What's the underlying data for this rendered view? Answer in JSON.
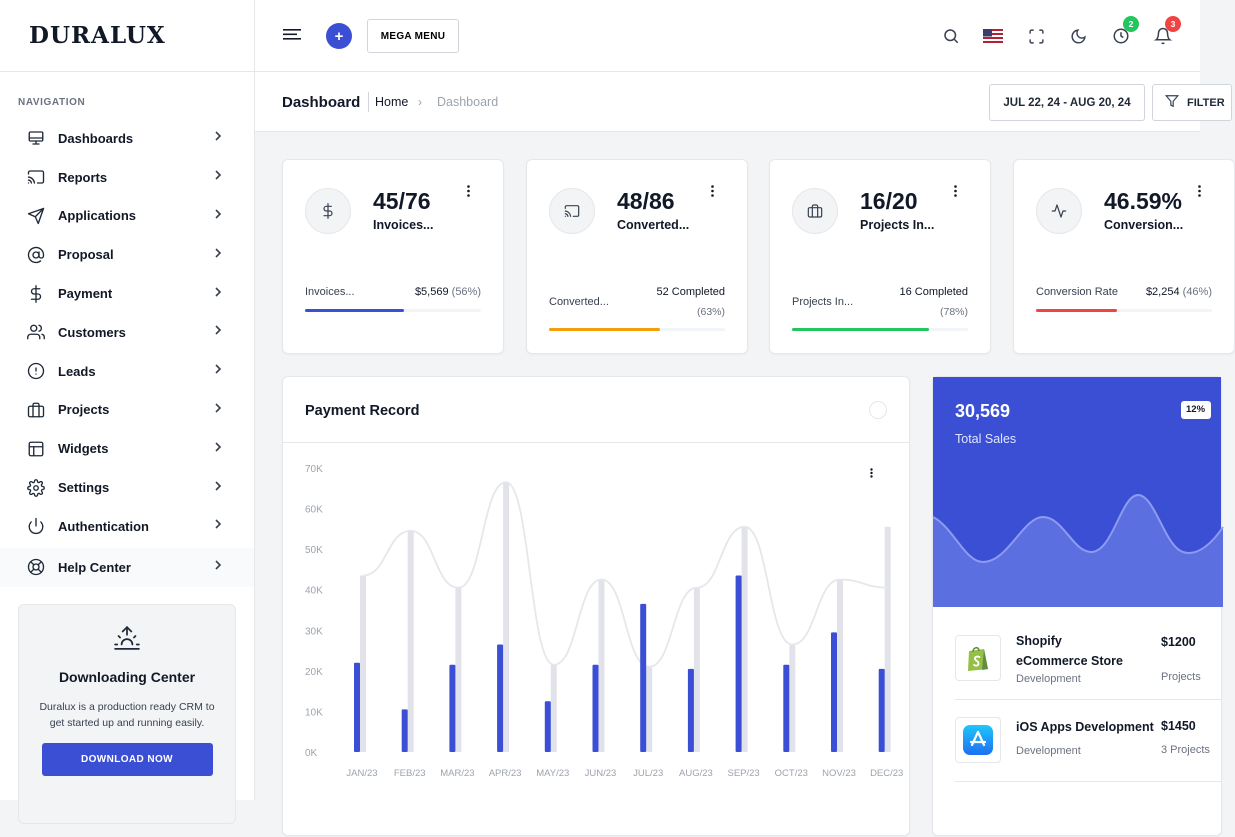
{
  "brand": {
    "logo": "DURALUX"
  },
  "sidebar": {
    "caption": "NAVIGATION",
    "items": [
      {
        "label": "Dashboards",
        "icon": "monitor-icon"
      },
      {
        "label": "Reports",
        "icon": "cast-icon"
      },
      {
        "label": "Applications",
        "icon": "send-icon"
      },
      {
        "label": "Proposal",
        "icon": "at-sign-icon"
      },
      {
        "label": "Payment",
        "icon": "dollar-icon"
      },
      {
        "label": "Customers",
        "icon": "users-icon"
      },
      {
        "label": "Leads",
        "icon": "alert-circle-icon"
      },
      {
        "label": "Projects",
        "icon": "briefcase-icon"
      },
      {
        "label": "Widgets",
        "icon": "layout-icon"
      },
      {
        "label": "Settings",
        "icon": "gear-icon"
      },
      {
        "label": "Authentication",
        "icon": "power-icon"
      }
    ],
    "help": {
      "label": "Help Center",
      "icon": "life-buoy-icon"
    },
    "download": {
      "title": "Downloading Center",
      "text": "Duralux is a production ready CRM to get started up and running easily.",
      "button": "DOWNLOAD NOW"
    }
  },
  "topbar": {
    "plus": "+",
    "mega_menu": "MEGA MENU",
    "timer_badge": "2",
    "bell_badge": "3",
    "badge_colors": {
      "timer": "#22c55e",
      "bell": "#ef4444"
    }
  },
  "pagehead": {
    "title": "Dashboard",
    "breadcrumb_home": "Home",
    "breadcrumb_sep": "›",
    "breadcrumb_current": "Dashboard",
    "date_range": "JUL 22, 24 - AUG 20, 24",
    "filter": "FILTER"
  },
  "stats": [
    {
      "value": "45/76",
      "subtitle": "Invoices...",
      "icon": "dollar-icon",
      "label": "Invoices...",
      "right_value": "$5,569",
      "right_pct": "(56%)",
      "progress": 0.56,
      "color": "#3b4fd4"
    },
    {
      "value": "48/86",
      "subtitle": "Converted...",
      "icon": "cast-icon",
      "label": "Converted...",
      "right_value": "52 Completed",
      "right_pct": "(63%)",
      "progress": 0.63,
      "color": "#f59e0b"
    },
    {
      "value": "16/20",
      "subtitle": "Projects In...",
      "icon": "briefcase-icon",
      "label": "Projects In...",
      "right_value": "16 Completed",
      "right_pct": "(78%)",
      "progress": 0.78,
      "color": "#22c55e"
    },
    {
      "value": "46.59%",
      "subtitle": "Conversion...",
      "icon": "activity-icon",
      "label": "Conversion Rate",
      "right_value": "$2,254",
      "right_pct": "(46%)",
      "progress": 0.46,
      "color": "#ef4444"
    }
  ],
  "payment": {
    "title": "Payment Record"
  },
  "chart_data": {
    "type": "bar",
    "title": "Payment Record",
    "categories": [
      "JAN/23",
      "FEB/23",
      "MAR/23",
      "APR/23",
      "MAY/23",
      "JUN/23",
      "JUL/23",
      "AUG/23",
      "SEP/23",
      "OCT/23",
      "NOV/23",
      "DEC/23"
    ],
    "series": [
      {
        "values": [
          22000,
          10500,
          21500,
          26500,
          12500,
          21500,
          36500,
          20500,
          43500,
          21500,
          29500,
          20500
        ],
        "color": "#3b4fd4"
      },
      {
        "values": [
          43500,
          54500,
          40500,
          66500,
          21500,
          42500,
          21000,
          40500,
          55500,
          26500,
          42500,
          55500
        ],
        "color": "#e2e3ea"
      }
    ],
    "line": {
      "values": [
        43500,
        54500,
        40500,
        66500,
        21500,
        42500,
        21000,
        40500,
        55500,
        26500,
        42500,
        40500
      ],
      "color": "#e5e7eb"
    },
    "ylim": [
      0,
      70000
    ],
    "yticks": [
      "0K",
      "10K",
      "20K",
      "30K",
      "40K",
      "50K",
      "60K",
      "70K"
    ],
    "grid": false
  },
  "sales": {
    "value": "30,569",
    "label": "Total Sales",
    "pill": "12%",
    "wave_color": "#5b6fe0",
    "projects": [
      {
        "name": "Shopify eCommerce Store",
        "category": "Development",
        "price": "$1200",
        "meta": "Projects",
        "icon": "shopify-icon"
      },
      {
        "name": "iOS Apps Development",
        "category": "Development",
        "price": "$1450",
        "meta": "3 Projects",
        "icon": "app-store-icon"
      }
    ]
  }
}
